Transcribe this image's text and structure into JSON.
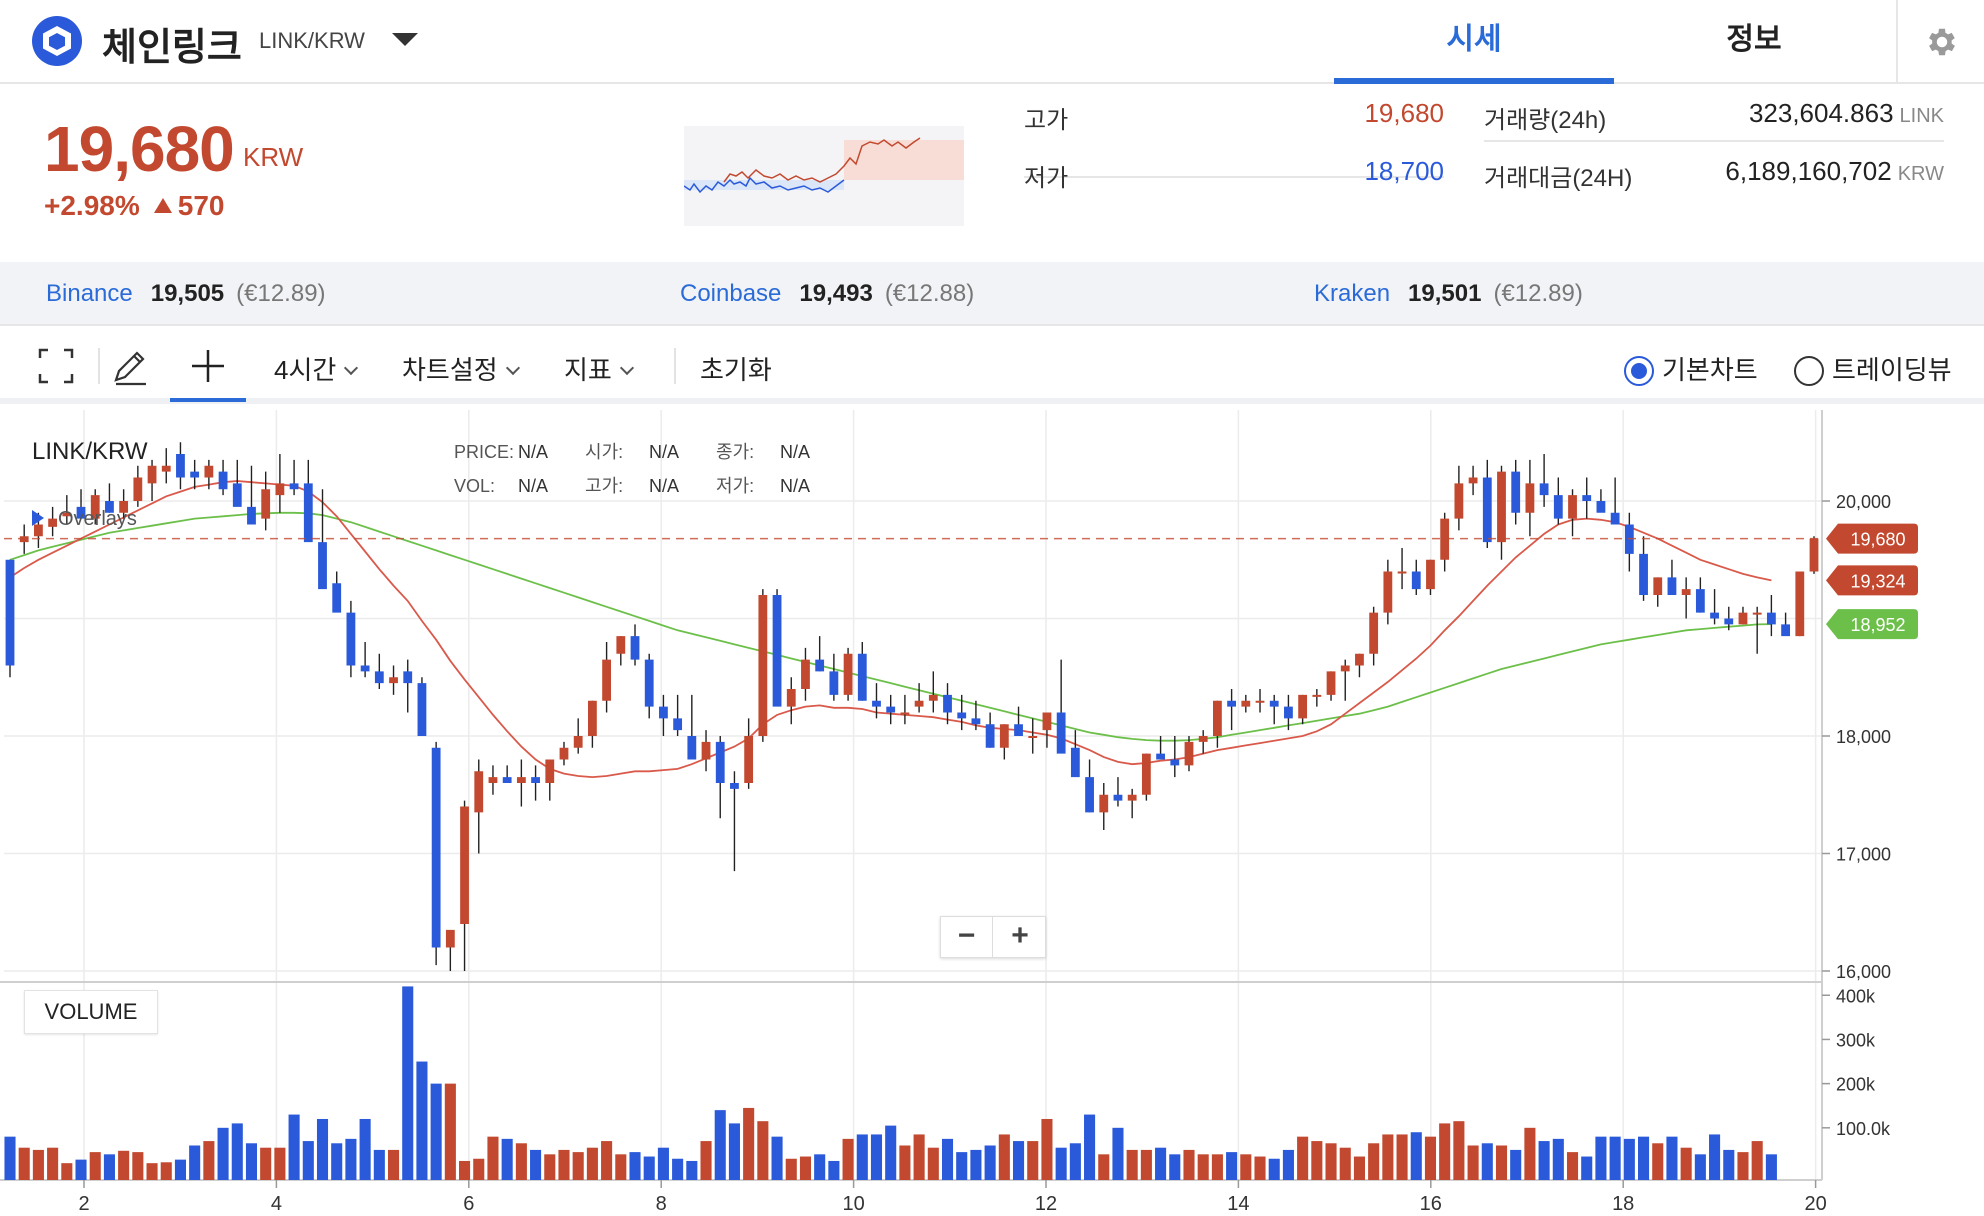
{
  "coin": {
    "name": "체인링크",
    "pair": "LINK/KRW"
  },
  "tabs": {
    "price": "시세",
    "info": "정보"
  },
  "summary": {
    "price": "19,680",
    "unit": "KRW",
    "change_pct": "+2.98%",
    "change_abs": "570",
    "high_label": "고가",
    "high_value": "19,680",
    "low_label": "저가",
    "low_value": "18,700",
    "volume_label": "거래량(24h)",
    "volume_value": "323,604.863",
    "volume_unit": "LINK",
    "turnover_label": "거래대금(24H)",
    "turnover_value": "6,189,160,702",
    "turnover_unit": "KRW"
  },
  "exchanges": [
    {
      "name": "Binance",
      "price": "19,505",
      "eur": "(€12.89)"
    },
    {
      "name": "Coinbase",
      "price": "19,493",
      "eur": "(€12.88)"
    },
    {
      "name": "Kraken",
      "price": "19,501",
      "eur": "(€12.89)"
    }
  ],
  "toolbar": {
    "interval": "4시간",
    "chart_settings": "차트설정",
    "indicators": "지표",
    "reset": "초기화",
    "view_basic": "기본차트",
    "view_trading": "트레이딩뷰",
    "selected_view": "basic"
  },
  "chart_overlay": {
    "pair": "LINK/KRW",
    "overlays": "Overlays",
    "volume": "VOLUME",
    "legend": [
      {
        "k": "PRICE:",
        "v": "N/A"
      },
      {
        "k": "시가:",
        "v": "N/A"
      },
      {
        "k": "종가:",
        "v": "N/A"
      },
      {
        "k": "VOL:",
        "v": "N/A"
      },
      {
        "k": "고가:",
        "v": "N/A"
      },
      {
        "k": "저가:",
        "v": "N/A"
      }
    ]
  },
  "colors": {
    "up": "#c2492f",
    "down": "#2a5ada",
    "ma_short": "#d9594a",
    "ma_long": "#6cc04a",
    "accent": "#2a6bd8"
  },
  "chart_data": {
    "type": "candlestick",
    "x_ticks": [
      "2",
      "4",
      "6",
      "8",
      "10",
      "12",
      "14",
      "16",
      "18",
      "20"
    ],
    "y_ticks": [
      16000,
      17000,
      18000,
      20000
    ],
    "y_tick_labels": [
      "16,000",
      "17,000",
      "18,000",
      "20,000"
    ],
    "ylim": [
      16000,
      20700
    ],
    "volume_ticks": [
      "100.0k",
      "200k",
      "300k",
      "400k"
    ],
    "volume_ylim": [
      0,
      430000
    ],
    "price_markers": [
      {
        "label": "19,680",
        "value": 19680,
        "color": "#c2492f"
      },
      {
        "label": "19,324",
        "value": 19324,
        "color": "#c2492f"
      },
      {
        "label": "18,952",
        "value": 18952,
        "color": "#6cc04a"
      }
    ],
    "candles_ohlc": [
      [
        19500,
        19500,
        18500,
        18600
      ],
      [
        19650,
        19800,
        19550,
        19700
      ],
      [
        19700,
        19900,
        19600,
        19800
      ],
      [
        19780,
        19950,
        19700,
        19850
      ],
      [
        19870,
        20050,
        19800,
        19900
      ],
      [
        19950,
        20100,
        19850,
        19850
      ],
      [
        19850,
        20100,
        19800,
        20050
      ],
      [
        20000,
        20150,
        19900,
        19900
      ],
      [
        19900,
        20100,
        19850,
        20000
      ],
      [
        20000,
        20300,
        19950,
        20200
      ],
      [
        20150,
        20350,
        20000,
        20300
      ],
      [
        20250,
        20450,
        20150,
        20300
      ],
      [
        20400,
        20500,
        20100,
        20200
      ],
      [
        20250,
        20350,
        20100,
        20200
      ],
      [
        20200,
        20350,
        20100,
        20300
      ],
      [
        20250,
        20350,
        20050,
        20100
      ],
      [
        20150,
        20350,
        20100,
        19950
      ],
      [
        19950,
        20300,
        19900,
        19800
      ],
      [
        19850,
        20250,
        19750,
        20100
      ],
      [
        20050,
        20400,
        19900,
        20150
      ],
      [
        20150,
        20350,
        20050,
        20100
      ],
      [
        20150,
        20350,
        20050,
        19650
      ],
      [
        19650,
        20100,
        19300,
        19250
      ],
      [
        19300,
        19400,
        19100,
        19050
      ],
      [
        19050,
        19150,
        18500,
        18600
      ],
      [
        18600,
        18800,
        18500,
        18550
      ],
      [
        18550,
        18700,
        18400,
        18450
      ],
      [
        18450,
        18600,
        18350,
        18500
      ],
      [
        18550,
        18650,
        18200,
        18450
      ],
      [
        18450,
        18500,
        18000,
        18000
      ],
      [
        17900,
        17950,
        16050,
        16200
      ],
      [
        16200,
        16300,
        16000,
        16350
      ],
      [
        16400,
        17450,
        16000,
        17400
      ],
      [
        17350,
        17800,
        17000,
        17700
      ],
      [
        17600,
        17750,
        17500,
        17650
      ],
      [
        17650,
        17750,
        17600,
        17600
      ],
      [
        17600,
        17800,
        17400,
        17650
      ],
      [
        17650,
        17750,
        17450,
        17600
      ],
      [
        17600,
        17800,
        17450,
        17800
      ],
      [
        17800,
        17950,
        17750,
        17900
      ],
      [
        17900,
        18150,
        17850,
        18000
      ],
      [
        18000,
        18300,
        17900,
        18300
      ],
      [
        18300,
        18800,
        18200,
        18650
      ],
      [
        18700,
        18850,
        18600,
        18850
      ],
      [
        18850,
        18950,
        18600,
        18650
      ],
      [
        18650,
        18700,
        18150,
        18250
      ],
      [
        18250,
        18350,
        18000,
        18150
      ],
      [
        18150,
        18350,
        18000,
        18050
      ],
      [
        18000,
        18350,
        17900,
        17800
      ],
      [
        17800,
        18050,
        17700,
        17950
      ],
      [
        17950,
        18000,
        17300,
        17600
      ],
      [
        17600,
        17700,
        16850,
        17550
      ],
      [
        17600,
        18150,
        17550,
        18000
      ],
      [
        18000,
        19250,
        17950,
        19200
      ],
      [
        19200,
        19250,
        18400,
        18250
      ],
      [
        18250,
        18500,
        18100,
        18400
      ],
      [
        18400,
        18750,
        18300,
        18650
      ],
      [
        18650,
        18850,
        18550,
        18550
      ],
      [
        18550,
        18700,
        18300,
        18350
      ],
      [
        18350,
        18750,
        18300,
        18700
      ],
      [
        18700,
        18800,
        18300,
        18300
      ],
      [
        18300,
        18450,
        18150,
        18250
      ],
      [
        18250,
        18350,
        18100,
        18200
      ],
      [
        18200,
        18350,
        18100,
        18200
      ],
      [
        18250,
        18450,
        18200,
        18300
      ],
      [
        18300,
        18550,
        18200,
        18350
      ],
      [
        18350,
        18450,
        18100,
        18200
      ],
      [
        18200,
        18350,
        18050,
        18150
      ],
      [
        18150,
        18300,
        18050,
        18100
      ],
      [
        18100,
        18200,
        17900,
        17900
      ],
      [
        17900,
        18100,
        17800,
        18100
      ],
      [
        18100,
        18250,
        18000,
        18000
      ],
      [
        18000,
        18150,
        17850,
        18000
      ],
      [
        18050,
        18150,
        17900,
        18200
      ],
      [
        18200,
        18650,
        17900,
        17850
      ],
      [
        17900,
        18050,
        17700,
        17650
      ],
      [
        17650,
        17800,
        17350,
        17350
      ],
      [
        17350,
        17600,
        17200,
        17500
      ],
      [
        17500,
        17650,
        17400,
        17450
      ],
      [
        17450,
        17550,
        17300,
        17500
      ],
      [
        17500,
        17850,
        17450,
        17850
      ],
      [
        17850,
        18000,
        17800,
        17800
      ],
      [
        17800,
        18000,
        17650,
        17750
      ],
      [
        17750,
        18000,
        17700,
        17950
      ],
      [
        17950,
        18050,
        17850,
        18000
      ],
      [
        18000,
        18300,
        17900,
        18300
      ],
      [
        18300,
        18400,
        18050,
        18250
      ],
      [
        18250,
        18350,
        18200,
        18300
      ],
      [
        18300,
        18400,
        18200,
        18300
      ],
      [
        18300,
        18350,
        18100,
        18250
      ],
      [
        18250,
        18350,
        18050,
        18150
      ],
      [
        18150,
        18350,
        18100,
        18350
      ],
      [
        18350,
        18400,
        18250,
        18350
      ],
      [
        18350,
        18550,
        18300,
        18550
      ],
      [
        18550,
        18650,
        18300,
        18600
      ],
      [
        18600,
        18700,
        18500,
        18700
      ],
      [
        18700,
        19100,
        18600,
        19050
      ],
      [
        19050,
        19500,
        18950,
        19400
      ],
      [
        19400,
        19600,
        19250,
        19400
      ],
      [
        19400,
        19500,
        19200,
        19250
      ],
      [
        19250,
        19500,
        19200,
        19500
      ],
      [
        19500,
        19900,
        19400,
        19850
      ],
      [
        19850,
        20300,
        19750,
        20150
      ],
      [
        20150,
        20300,
        20050,
        20200
      ],
      [
        20200,
        20350,
        19600,
        19650
      ],
      [
        19650,
        20300,
        19500,
        20250
      ],
      [
        20250,
        20350,
        19800,
        19900
      ],
      [
        19900,
        20350,
        19700,
        20150
      ],
      [
        20150,
        20400,
        19950,
        20050
      ],
      [
        20050,
        20200,
        19800,
        19850
      ],
      [
        19850,
        20100,
        19700,
        20050
      ],
      [
        20050,
        20200,
        19850,
        20000
      ],
      [
        20000,
        20100,
        19950,
        19900
      ],
      [
        19900,
        20200,
        19850,
        19800
      ],
      [
        19800,
        19900,
        19400,
        19550
      ],
      [
        19550,
        19700,
        19150,
        19200
      ],
      [
        19200,
        19350,
        19100,
        19350
      ],
      [
        19350,
        19500,
        19200,
        19200
      ],
      [
        19200,
        19350,
        19000,
        19250
      ],
      [
        19250,
        19350,
        19050,
        19050
      ],
      [
        19050,
        19250,
        18950,
        19000
      ],
      [
        19000,
        19100,
        18900,
        18950
      ],
      [
        18950,
        19100,
        18950,
        19050
      ],
      [
        19050,
        19100,
        18700,
        19050
      ],
      [
        19050,
        19200,
        18850,
        18950
      ],
      [
        18950,
        19050,
        18900,
        18850
      ],
      [
        18850,
        19400,
        18850,
        19400
      ],
      [
        19400,
        19700,
        19380,
        19680
      ]
    ],
    "ma_short": [
      19350,
      19430,
      19500,
      19560,
      19620,
      19680,
      19740,
      19800,
      19860,
      19920,
      19980,
      20040,
      20080,
      20120,
      20140,
      20160,
      20170,
      20160,
      20150,
      20140,
      20130,
      20080,
      19990,
      19870,
      19720,
      19570,
      19420,
      19280,
      19150,
      18980,
      18820,
      18640,
      18480,
      18330,
      18180,
      18040,
      17910,
      17800,
      17720,
      17680,
      17660,
      17650,
      17660,
      17680,
      17700,
      17700,
      17710,
      17720,
      17760,
      17810,
      17860,
      17910,
      17980,
      18100,
      18180,
      18220,
      18250,
      18260,
      18240,
      18240,
      18230,
      18200,
      18190,
      18180,
      18170,
      18160,
      18140,
      18120,
      18090,
      18070,
      18060,
      18050,
      18030,
      18010,
      17980,
      17930,
      17880,
      17820,
      17780,
      17760,
      17770,
      17790,
      17800,
      17820,
      17850,
      17880,
      17900,
      17920,
      17940,
      17960,
      17980,
      18000,
      18040,
      18100,
      18190,
      18280,
      18370,
      18460,
      18560,
      18660,
      18770,
      18900,
      19020,
      19150,
      19280,
      19400,
      19520,
      19620,
      19720,
      19800,
      19840,
      19850,
      19840,
      19820,
      19780,
      19730,
      19680,
      19620,
      19560,
      19500,
      19460,
      19420,
      19380,
      19350,
      19324
    ],
    "ma_long": [
      19500,
      19540,
      19580,
      19610,
      19640,
      19670,
      19700,
      19730,
      19750,
      19770,
      19790,
      19810,
      19830,
      19850,
      19860,
      19870,
      19880,
      19890,
      19895,
      19900,
      19900,
      19895,
      19880,
      19850,
      19820,
      19780,
      19740,
      19700,
      19660,
      19620,
      19580,
      19540,
      19500,
      19460,
      19420,
      19380,
      19340,
      19300,
      19260,
      19220,
      19180,
      19140,
      19100,
      19060,
      19020,
      18980,
      18940,
      18900,
      18870,
      18840,
      18810,
      18780,
      18750,
      18720,
      18690,
      18660,
      18630,
      18600,
      18570,
      18540,
      18510,
      18480,
      18450,
      18420,
      18390,
      18360,
      18330,
      18300,
      18270,
      18240,
      18210,
      18180,
      18150,
      18120,
      18090,
      18060,
      18030,
      18010,
      17990,
      17975,
      17965,
      17960,
      17960,
      17965,
      17975,
      17990,
      18010,
      18030,
      18050,
      18070,
      18090,
      18110,
      18130,
      18150,
      18170,
      18190,
      18220,
      18250,
      18290,
      18330,
      18370,
      18410,
      18450,
      18490,
      18530,
      18570,
      18600,
      18630,
      18660,
      18690,
      18720,
      18750,
      18780,
      18800,
      18820,
      18840,
      18860,
      18880,
      18900,
      18910,
      18920,
      18930,
      18940,
      18950,
      18952
    ],
    "volume_k": [
      80,
      55,
      50,
      55,
      20,
      28,
      45,
      40,
      48,
      45,
      20,
      22,
      28,
      60,
      70,
      100,
      110,
      65,
      55,
      55,
      130,
      70,
      120,
      65,
      75,
      120,
      50,
      50,
      420,
      250,
      200,
      200,
      25,
      30,
      80,
      75,
      65,
      50,
      40,
      50,
      45,
      55,
      70,
      40,
      45,
      35,
      55,
      30,
      25,
      70,
      140,
      110,
      145,
      115,
      80,
      30,
      35,
      40,
      25,
      75,
      85,
      85,
      105,
      60,
      85,
      55,
      75,
      45,
      50,
      60,
      85,
      70,
      70,
      120,
      55,
      65,
      130,
      40,
      100,
      50,
      50,
      55,
      40,
      50,
      40,
      40,
      45,
      40,
      35,
      30,
      50,
      80,
      70,
      65,
      55,
      35,
      65,
      85,
      85,
      90,
      80,
      110,
      115,
      60,
      65,
      60,
      50,
      100,
      70,
      75,
      45,
      35,
      80,
      80,
      75,
      80,
      65,
      80,
      55,
      40,
      85,
      50,
      45,
      70,
      40
    ]
  }
}
